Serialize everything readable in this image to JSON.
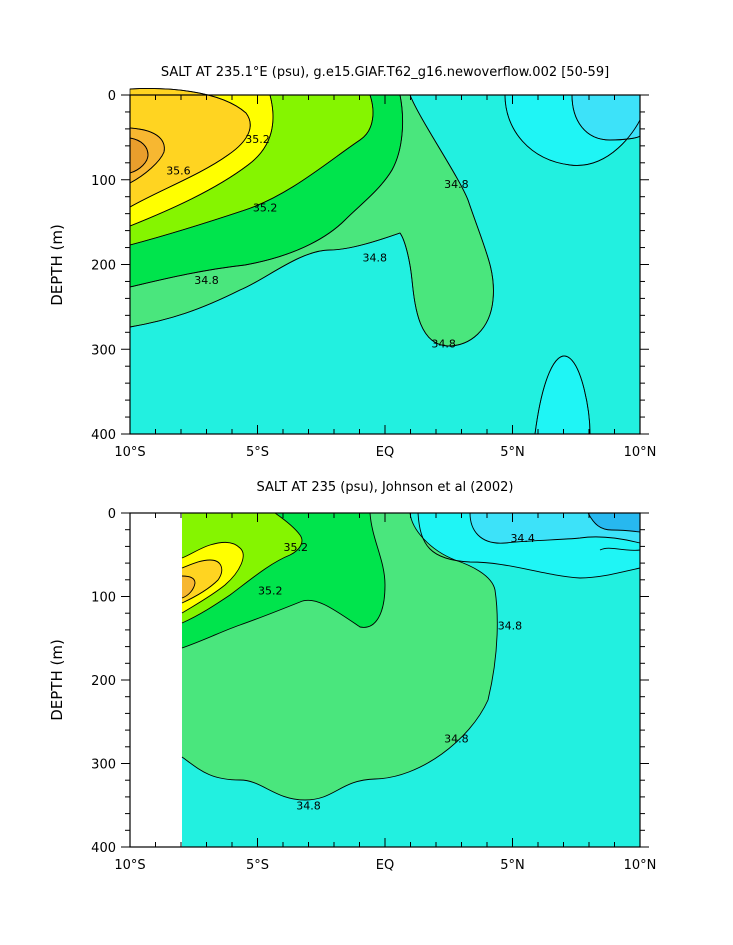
{
  "chart_data": [
    {
      "type": "contour",
      "title": "SALT AT 235.1°E (psu), g.e15.GIAF.T62_g16.newoverflow.002 [50-59]",
      "ylabel": "DEPTH (m)",
      "xlabel": "",
      "xlim": [
        -10,
        10
      ],
      "ylim": [
        400,
        0
      ],
      "xticks": [
        -10,
        -5,
        0,
        5,
        10
      ],
      "xticklabels": [
        "10°S",
        "5°S",
        "EQ",
        "5°N",
        "10°N"
      ],
      "yticks": [
        0,
        100,
        200,
        300,
        400
      ],
      "yticklabels": [
        "0",
        "100",
        "200",
        "300",
        "400"
      ],
      "contour_labels": [
        {
          "text": "35.6",
          "x": -8.1,
          "y": 89
        },
        {
          "text": "35.2",
          "x": -5.0,
          "y": 52
        },
        {
          "text": "35.2",
          "x": -4.7,
          "y": 133
        },
        {
          "text": "34.8",
          "x": 2.8,
          "y": 105
        },
        {
          "text": "34.8",
          "x": -0.4,
          "y": 192
        },
        {
          "text": "34.8",
          "x": -7.0,
          "y": 218
        },
        {
          "text": "34.8",
          "x": 2.3,
          "y": 293
        }
      ]
    },
    {
      "type": "contour",
      "title": "SALT AT 235 (psu), Johnson et al (2002)",
      "ylabel": "DEPTH (m)",
      "xlabel": "",
      "xlim": [
        -10,
        10
      ],
      "ylim": [
        400,
        0
      ],
      "xticks": [
        -10,
        -5,
        0,
        5,
        10
      ],
      "xticklabels": [
        "10°S",
        "5°S",
        "EQ",
        "5°N",
        "10°N"
      ],
      "yticks": [
        0,
        100,
        200,
        300,
        400
      ],
      "yticklabels": [
        "0",
        "100",
        "200",
        "300",
        "400"
      ],
      "contour_labels": [
        {
          "text": "35.2",
          "x": -3.5,
          "y": 41
        },
        {
          "text": "35.2",
          "x": -4.5,
          "y": 93
        },
        {
          "text": "34.4",
          "x": 5.4,
          "y": 30
        },
        {
          "text": "34.8",
          "x": 4.9,
          "y": 135
        },
        {
          "text": "34.8",
          "x": 2.8,
          "y": 270
        },
        {
          "text": "34.8",
          "x": -3.0,
          "y": 350
        }
      ]
    }
  ]
}
